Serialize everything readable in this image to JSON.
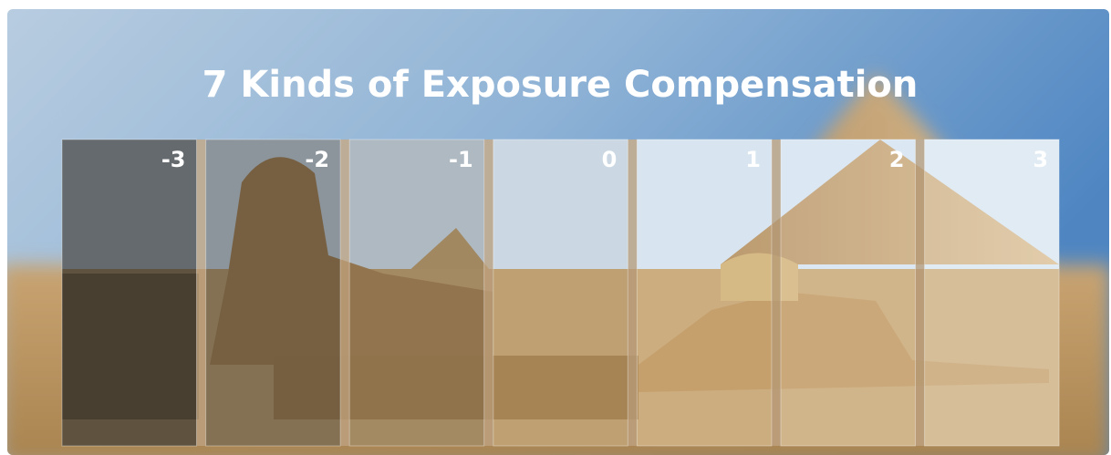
{
  "header": {
    "title": "7 Kinds of Exposure Compensation"
  },
  "panels": [
    {
      "label": "-3"
    },
    {
      "label": "-2"
    },
    {
      "label": "-1"
    },
    {
      "label": "0"
    },
    {
      "label": "1"
    },
    {
      "label": "2"
    },
    {
      "label": "3"
    }
  ]
}
